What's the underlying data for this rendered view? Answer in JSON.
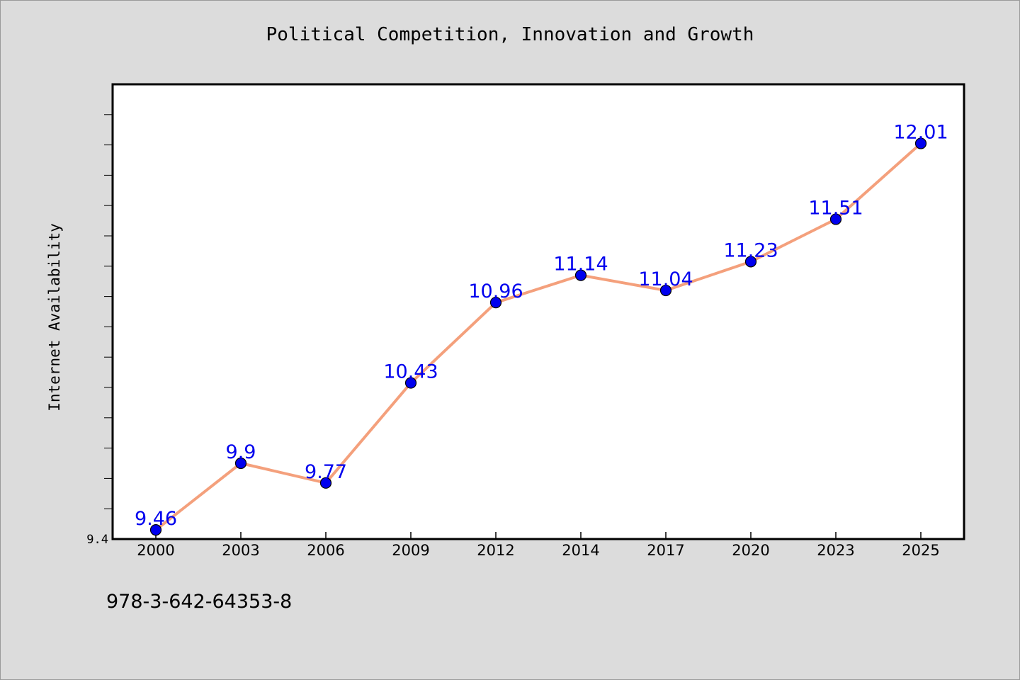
{
  "chart_data": {
    "type": "line",
    "title": "Political Competition, Innovation and Growth",
    "xlabel": "",
    "ylabel": "Internet Availability",
    "categories": [
      "2000",
      "2003",
      "2006",
      "2009",
      "2012",
      "2014",
      "2017",
      "2020",
      "2023",
      "2025"
    ],
    "series": [
      {
        "values": [
          9.46,
          9.9,
          9.77,
          10.43,
          10.96,
          11.14,
          11.04,
          11.23,
          11.51,
          12.01
        ],
        "labels": [
          "9.46",
          "9.9",
          "9.77",
          "10.43",
          "10.96",
          "11.14",
          "11.04",
          "11.23",
          "11.51",
          "12.01"
        ]
      }
    ],
    "ylim": [
      9.4,
      12.4
    ],
    "ytick_labels": [
      "9.4"
    ],
    "grid": false,
    "line_color": "#f4a07c",
    "marker_color": "#0000ee",
    "data_label_color": "#0000ee",
    "plot_background": "#ffffff",
    "figure_background": "#dcdcdc"
  },
  "footer": {
    "isbn": "978-3-642-64353-8"
  }
}
